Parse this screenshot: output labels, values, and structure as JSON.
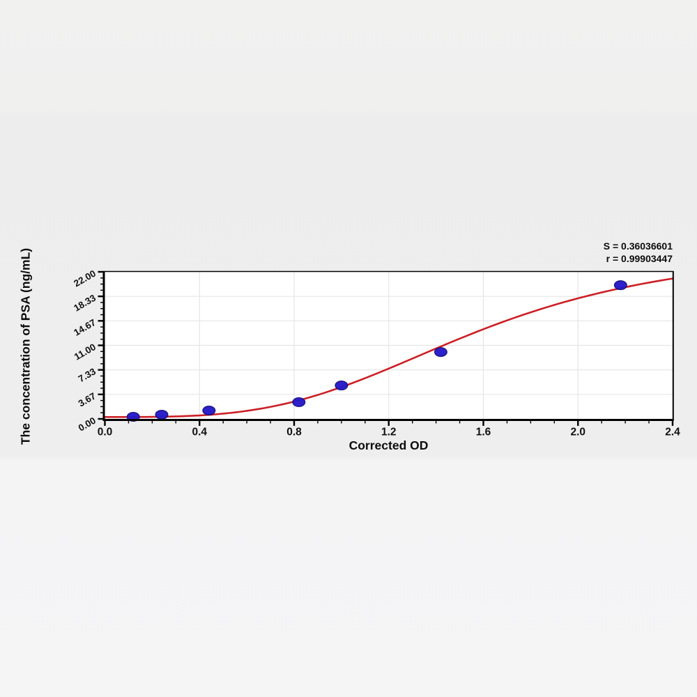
{
  "chart_data": {
    "type": "scatter",
    "title": "",
    "xlabel": "Corrected OD",
    "ylabel": "The concentration of PSA (ng/mL)",
    "xlim": [
      0,
      2.4
    ],
    "ylim": [
      0,
      22
    ],
    "x_tick_values": [
      0,
      0.4,
      0.8,
      1.2,
      1.6,
      2.0,
      2.4
    ],
    "x_tick_labels": [
      "0.0",
      "0.4",
      "0.8",
      "1.2",
      "1.6",
      "2.0",
      "2.4"
    ],
    "x_minor_divisions_per_major": 4,
    "y_tick_values": [
      0,
      3.667,
      7.333,
      11,
      14.667,
      18.333,
      22
    ],
    "y_tick_labels": [
      "0.00",
      "3.67",
      "7.33",
      "11.00",
      "14.67",
      "18.33",
      "22.00"
    ],
    "y_minor_divisions_per_major": 4,
    "grid": true,
    "legend": false,
    "series": [
      {
        "name": "PSA standards",
        "type": "scatter",
        "points": [
          {
            "corrected_od": 0.12,
            "concentration_ng_ml": 0.31
          },
          {
            "corrected_od": 0.24,
            "concentration_ng_ml": 0.63
          },
          {
            "corrected_od": 0.44,
            "concentration_ng_ml": 1.25
          },
          {
            "corrected_od": 0.82,
            "concentration_ng_ml": 2.5
          },
          {
            "corrected_od": 1.0,
            "concentration_ng_ml": 5.0
          },
          {
            "corrected_od": 1.42,
            "concentration_ng_ml": 10.0
          },
          {
            "corrected_od": 2.18,
            "concentration_ng_ml": 20.0
          }
        ]
      },
      {
        "name": "4PL fit curve",
        "type": "line",
        "fit_model": "4-parameter logistic",
        "fit_params": {
          "a": 0.28,
          "b": 3.4,
          "c": 1.58,
          "d": 26.0
        }
      }
    ],
    "annotations": [
      "S = 0.36036601",
      "r = 0.99903447"
    ],
    "colors": {
      "curve": "#cb2026",
      "marker_fill": "#2519c9",
      "marker_edge": "#140f7e",
      "grid": "#e5e5e5",
      "axis": "#000000",
      "plot_bg": "#ffffff",
      "text": "#111111"
    }
  }
}
